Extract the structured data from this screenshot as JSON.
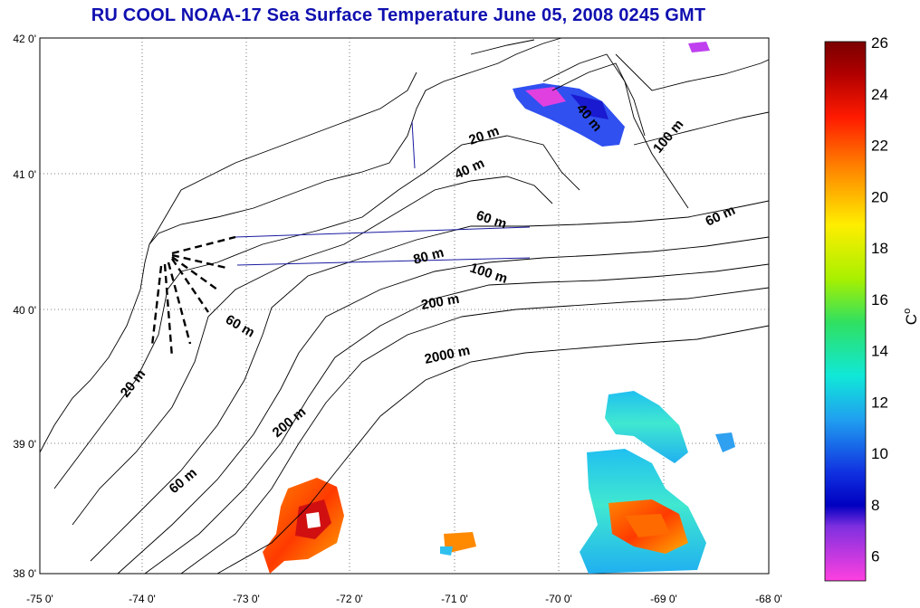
{
  "title": "RU COOL  NOAA-17 Sea Surface Temperature June 05, 2008 0245 GMT",
  "lon_ticks": [
    "-75 0'",
    "-74 0'",
    "-73 0'",
    "-72 0'",
    "-71 0'",
    "-70 0'",
    "-69 0'",
    "-68 0'"
  ],
  "lat_ticks": [
    "42 0'",
    "41 0'",
    "40 0'",
    "39 0'",
    "38 0'"
  ],
  "depth_labels": [
    "20 m",
    "40 m",
    "60 m",
    "80 m",
    "100 m",
    "200 m",
    "2000 m",
    "20 m",
    "60 m",
    "200 m",
    "60 m",
    "100 m",
    "60 m",
    "40 m"
  ],
  "colorbar": {
    "ticks": [
      "26",
      "24",
      "22",
      "20",
      "18",
      "16",
      "14",
      "12",
      "10",
      "8",
      "6"
    ],
    "unit_label": "C",
    "unit_superscript": "o",
    "range": [
      5,
      26
    ]
  },
  "colors": {
    "title": "#1010b0",
    "land_lines": "#000000",
    "transect_lines": "#1a1aa0"
  }
}
